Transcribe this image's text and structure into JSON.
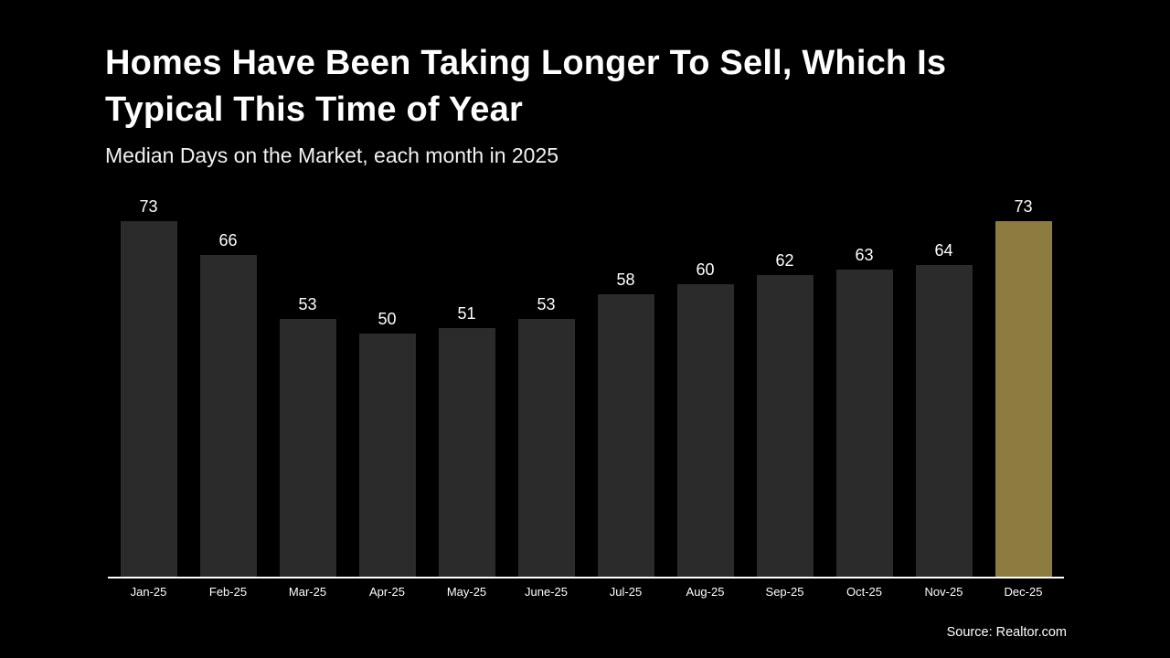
{
  "page": {
    "title_line1": "Homes Have Been Taking Longer To Sell, Which Is",
    "title_line2": "Typical This Time of Year",
    "subtitle": "Median Days on the Market, each month in 2025",
    "source": "Source: Realtor.com"
  },
  "colors": {
    "background": "#000000",
    "bar": "#2b2b2b",
    "highlight": "#8d7c40",
    "text": "#ffffff",
    "axis": "#ffffff"
  },
  "chart_data": {
    "type": "bar",
    "title": "Homes Have Been Taking Longer To Sell, Which Is Typical This Time of Year",
    "subtitle": "Median Days on the Market, each month in 2025",
    "categories": [
      "Jan-25",
      "Feb-25",
      "Mar-25",
      "Apr-25",
      "May-25",
      "June-25",
      "Jul-25",
      "Aug-25",
      "Sep-25",
      "Oct-25",
      "Nov-25",
      "Dec-25"
    ],
    "values": [
      73,
      66,
      53,
      50,
      51,
      53,
      58,
      60,
      62,
      63,
      64,
      73
    ],
    "xlabel": "",
    "ylabel": "",
    "ylim": [
      0,
      73
    ],
    "gridlines": false,
    "legend": false,
    "data_labels": true,
    "highlight_index": 11,
    "bar_color": "#2b2b2b",
    "highlight_color": "#8d7c40",
    "source": "Source: Realtor.com"
  }
}
